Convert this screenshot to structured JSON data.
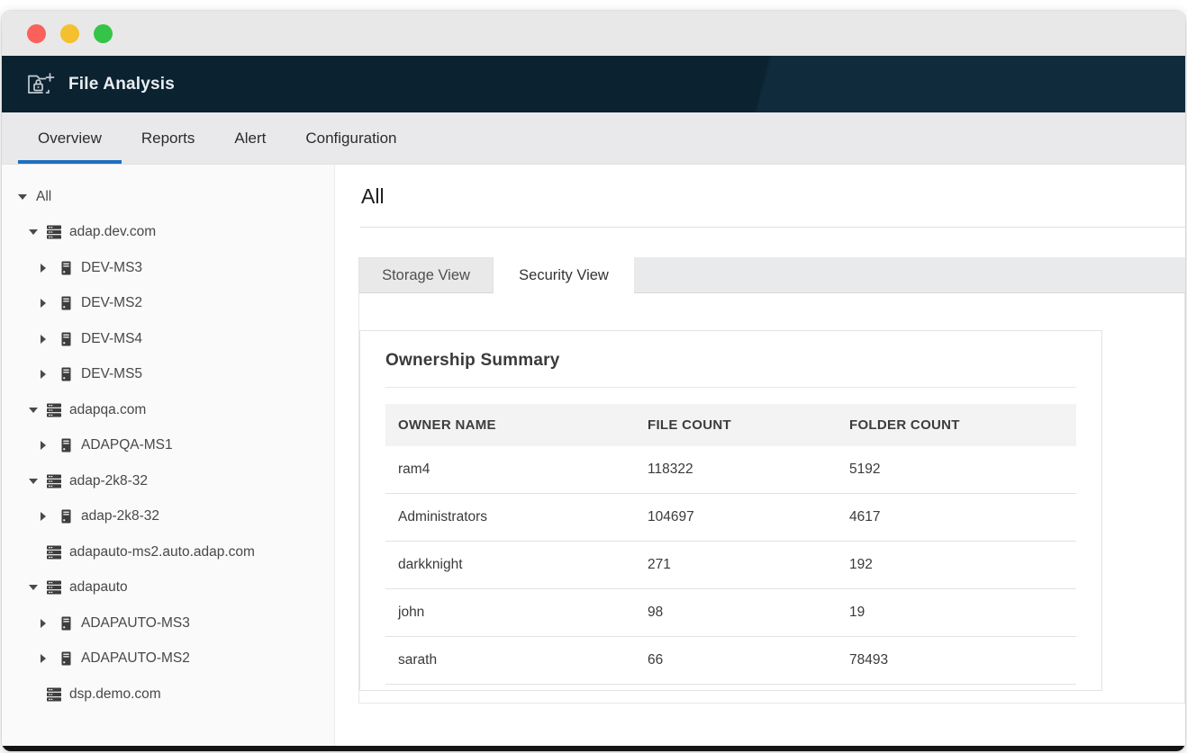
{
  "window": {
    "controls": [
      {
        "name": "close",
        "color": "#fa615a"
      },
      {
        "name": "minimize",
        "color": "#f5c02f"
      },
      {
        "name": "maximize",
        "color": "#35c448"
      }
    ]
  },
  "app_header": {
    "title": "File Analysis",
    "icon": "folder-lock-plus-icon"
  },
  "nav_tabs": [
    {
      "label": "Overview",
      "active": true
    },
    {
      "label": "Reports",
      "active": false
    },
    {
      "label": "Alert",
      "active": false
    },
    {
      "label": "Configuration",
      "active": false
    }
  ],
  "sidebar": {
    "tree": [
      {
        "label": "All",
        "level": 0,
        "state": "expanded",
        "icon": ""
      },
      {
        "label": "adap.dev.com",
        "level": 1,
        "state": "expanded",
        "icon": "server-stack"
      },
      {
        "label": "DEV-MS3",
        "level": 2,
        "state": "collapsed",
        "icon": "server"
      },
      {
        "label": "DEV-MS2",
        "level": 2,
        "state": "collapsed",
        "icon": "server"
      },
      {
        "label": "DEV-MS4",
        "level": 2,
        "state": "collapsed",
        "icon": "server"
      },
      {
        "label": "DEV-MS5",
        "level": 2,
        "state": "collapsed",
        "icon": "server"
      },
      {
        "label": "adapqa.com",
        "level": 1,
        "state": "expanded",
        "icon": "server-stack"
      },
      {
        "label": "ADAPQA-MS1",
        "level": 2,
        "state": "collapsed",
        "icon": "server"
      },
      {
        "label": "adap-2k8-32",
        "level": 1,
        "state": "expanded",
        "icon": "server-stack"
      },
      {
        "label": "adap-2k8-32",
        "level": 2,
        "state": "collapsed",
        "icon": "server"
      },
      {
        "label": "adapauto-ms2.auto.adap.com",
        "level": 1,
        "state": "",
        "icon": "server-stack"
      },
      {
        "label": "adapauto",
        "level": 1,
        "state": "expanded",
        "icon": "server-stack"
      },
      {
        "label": "ADAPAUTO-MS3",
        "level": 2,
        "state": "collapsed",
        "icon": "server"
      },
      {
        "label": "ADAPAUTO-MS2",
        "level": 2,
        "state": "collapsed",
        "icon": "server"
      },
      {
        "label": "dsp.demo.com",
        "level": 1,
        "state": "",
        "icon": "server-stack"
      }
    ]
  },
  "main": {
    "page_title": "All",
    "view_tabs": [
      {
        "label": "Storage View",
        "active": false
      },
      {
        "label": "Security View",
        "active": true
      }
    ],
    "ownership_summary": {
      "title": "Ownership Summary",
      "columns": [
        "OWNER NAME",
        "FILE COUNT",
        "FOLDER COUNT"
      ],
      "rows": [
        [
          "ram4",
          "118322",
          "5192"
        ],
        [
          "Administrators",
          "104697",
          "4617"
        ],
        [
          "darkknight",
          "271",
          "192"
        ],
        [
          "john",
          "98",
          "19"
        ],
        [
          "sarath",
          "66",
          "78493"
        ]
      ]
    }
  },
  "colors": {
    "accent_blue": "#1f6fc0",
    "header_bg": "#0b2230",
    "tab_bar_bg": "#e9e9eb",
    "sidebar_bg": "#fafafa"
  }
}
